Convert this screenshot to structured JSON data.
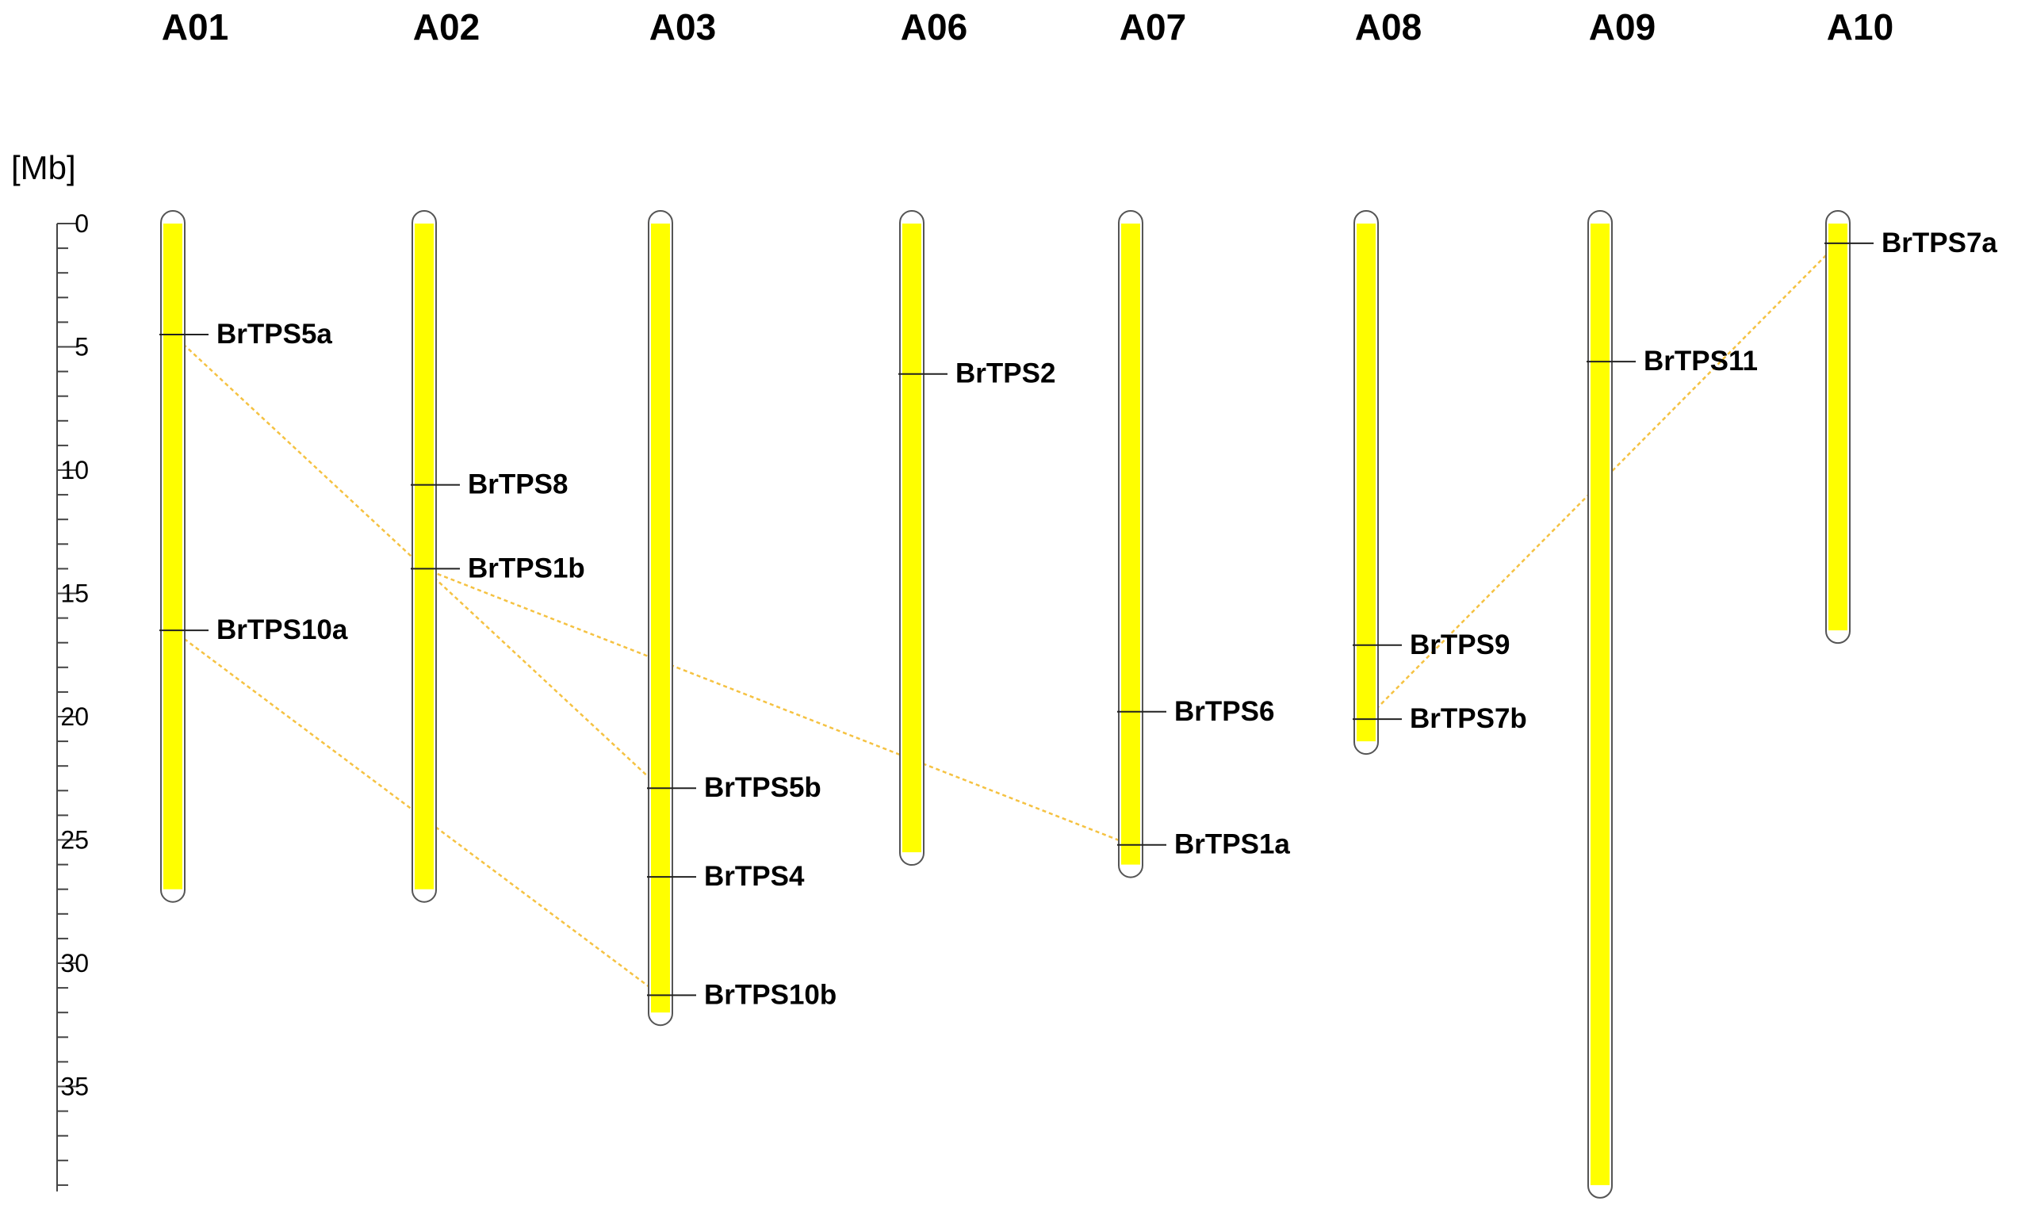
{
  "unit_label": "[Mb]",
  "colors": {
    "chromosome": "#ffff00",
    "link": "#f5c242"
  },
  "axis": {
    "min": 0,
    "max": 39,
    "major_ticks": [
      0,
      5,
      10,
      15,
      20,
      25,
      30,
      35
    ],
    "minor_step": 1
  },
  "chromosomes": [
    {
      "name": "A01",
      "length": 27.0
    },
    {
      "name": "A02",
      "length": 27.0
    },
    {
      "name": "A03",
      "length": 32.0
    },
    {
      "name": "A06",
      "length": 25.5
    },
    {
      "name": "A07",
      "length": 26.0
    },
    {
      "name": "A08",
      "length": 21.0
    },
    {
      "name": "A09",
      "length": 39.0
    },
    {
      "name": "A10",
      "length": 16.5
    }
  ],
  "genes": [
    {
      "name": "BrTPS5a",
      "chromosome": "A01",
      "position": 4.5
    },
    {
      "name": "BrTPS10a",
      "chromosome": "A01",
      "position": 16.5
    },
    {
      "name": "BrTPS8",
      "chromosome": "A02",
      "position": 10.6
    },
    {
      "name": "BrTPS1b",
      "chromosome": "A02",
      "position": 14.0
    },
    {
      "name": "BrTPS5b",
      "chromosome": "A03",
      "position": 22.9
    },
    {
      "name": "BrTPS4",
      "chromosome": "A03",
      "position": 26.5
    },
    {
      "name": "BrTPS10b",
      "chromosome": "A03",
      "position": 31.3
    },
    {
      "name": "BrTPS2",
      "chromosome": "A06",
      "position": 6.1
    },
    {
      "name": "BrTPS6",
      "chromosome": "A07",
      "position": 19.8
    },
    {
      "name": "BrTPS1a",
      "chromosome": "A07",
      "position": 25.2
    },
    {
      "name": "BrTPS9",
      "chromosome": "A08",
      "position": 17.1
    },
    {
      "name": "BrTPS7b",
      "chromosome": "A08",
      "position": 20.1
    },
    {
      "name": "BrTPS11",
      "chromosome": "A09",
      "position": 5.6
    },
    {
      "name": "BrTPS7a",
      "chromosome": "A10",
      "position": 0.8
    }
  ],
  "duplications": [
    {
      "from": "BrTPS5a",
      "to": "BrTPS5b"
    },
    {
      "from": "BrTPS10a",
      "to": "BrTPS10b"
    },
    {
      "from": "BrTPS1b",
      "to": "BrTPS1a"
    },
    {
      "from": "BrTPS7b",
      "to": "BrTPS7a"
    }
  ]
}
